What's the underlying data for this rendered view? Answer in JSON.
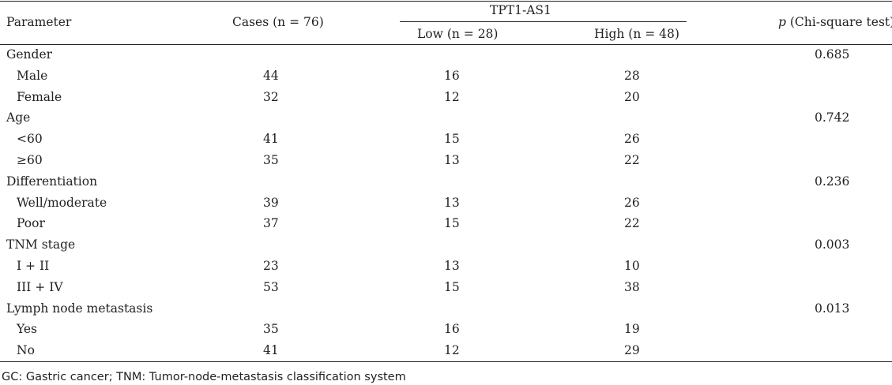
{
  "table": {
    "header": {
      "parameter": "Parameter",
      "cases": "Cases (n = 76)",
      "group": "TPT1-AS1",
      "low": "Low (n = 28)",
      "high": "High (n = 48)",
      "p_italic": "p",
      "p_rest": " (Chi-square test)"
    },
    "rows": [
      {
        "label": "Gender",
        "cases": "",
        "low": "",
        "high": "",
        "p": "0.685"
      },
      {
        "label": "Male",
        "cases": "44",
        "low": "16",
        "high": "28",
        "p": ""
      },
      {
        "label": "Female",
        "cases": "32",
        "low": "12",
        "high": "20",
        "p": ""
      },
      {
        "label": "Age",
        "cases": "",
        "low": "",
        "high": "",
        "p": "0.742"
      },
      {
        "label": "<60",
        "cases": "41",
        "low": "15",
        "high": "26",
        "p": ""
      },
      {
        "label": "≥60",
        "cases": "35",
        "low": "13",
        "high": "22",
        "p": ""
      },
      {
        "label": "Differentiation",
        "cases": "",
        "low": "",
        "high": "",
        "p": "0.236"
      },
      {
        "label": "Well/moderate",
        "cases": "39",
        "low": "13",
        "high": "26",
        "p": ""
      },
      {
        "label": "Poor",
        "cases": "37",
        "low": "15",
        "high": "22",
        "p": ""
      },
      {
        "label": "TNM stage",
        "cases": "",
        "low": "",
        "high": "",
        "p": "0.003"
      },
      {
        "label": "I + II",
        "cases": "23",
        "low": "13",
        "high": "10",
        "p": ""
      },
      {
        "label": "III + IV",
        "cases": "53",
        "low": "15",
        "high": "38",
        "p": ""
      },
      {
        "label": "Lymph node metastasis",
        "cases": "",
        "low": "",
        "high": "",
        "p": "0.013"
      },
      {
        "label": "Yes",
        "cases": "35",
        "low": "16",
        "high": "19",
        "p": ""
      },
      {
        "label": "No",
        "cases": "41",
        "low": "12",
        "high": "29",
        "p": ""
      }
    ]
  },
  "footnote": "GC: Gastric cancer; TNM: Tumor-node-metastasis classification system"
}
